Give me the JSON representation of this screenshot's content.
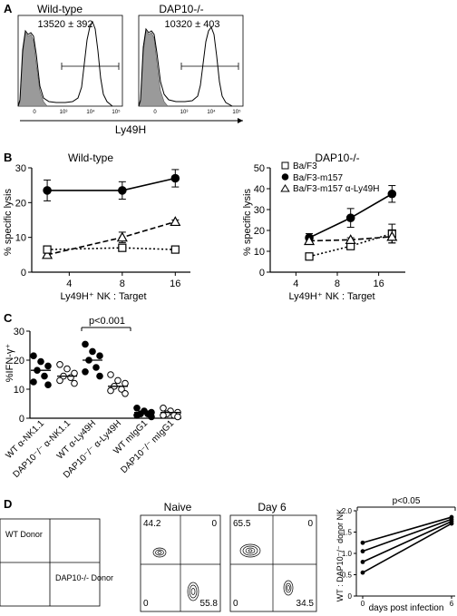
{
  "panel_labels": {
    "A": "A",
    "B": "B",
    "C": "C",
    "D": "D"
  },
  "panel_a": {
    "histograms": [
      {
        "title": "Wild-type",
        "mfi_text": "13520 ± 392"
      },
      {
        "title": "DAP10-/-",
        "mfi_text": "10320 ± 403"
      }
    ],
    "x_ticks": [
      "0",
      "10³",
      "10⁴",
      "10⁵"
    ],
    "axis_label": "Ly49H"
  },
  "panel_b": {
    "x_label": "Ly49H⁺ NK : Target",
    "y_label": "% specific lysis",
    "legend": [
      "Ba/F3",
      "Ba/F3-m157",
      "Ba/F3-m157 α-Ly49H"
    ],
    "x_ticks": [
      4,
      8,
      16
    ],
    "left": {
      "title": "Wild-type"
    },
    "right": {
      "title": "DAP10-/-"
    }
  },
  "panel_c": {
    "y_label": "%IFN-γ⁺",
    "y_ticks": [
      0,
      10,
      20,
      30
    ],
    "p_value": "p<0.001",
    "categories": [
      "WT α-NK1.1",
      "DAP10⁻/⁻ α-NK1.1",
      "WT α-Ly49H",
      "DAP10⁻/⁻ α-Ly49H",
      "WT mIgG1",
      "DAP10⁻/⁻ mIgG1"
    ]
  },
  "panel_d": {
    "schematic": {
      "top_left": "WT Donor",
      "bottom_right": "DAP10-/- Donor"
    },
    "plots": [
      {
        "title": "Naive",
        "q_ul": "44.2",
        "q_ur": "0",
        "q_ll": "0",
        "q_lr": "55.8"
      },
      {
        "title": "Day 6",
        "q_ul": "65.5",
        "q_ur": "0",
        "q_ll": "0",
        "q_lr": "34.5"
      }
    ],
    "ratio_plot": {
      "y_label": "WT : DAP10⁻/⁻ donor NK",
      "x_label": "days post infection",
      "p_value": "p<0.05",
      "y_ticks": [
        "0",
        "0.5",
        "1.0",
        "1.5",
        "2.0"
      ],
      "x_ticks": [
        "0",
        "6"
      ]
    }
  },
  "chart_data": [
    {
      "type": "line",
      "title": "Wild-type",
      "xlabel": "Ly49H⁺ NK : Target",
      "ylabel": "% specific lysis",
      "x_scale": "log2",
      "ylim": [
        0,
        30
      ],
      "series": [
        {
          "name": "Ba/F3-m157",
          "x": [
            3,
            8,
            16
          ],
          "y": [
            23.5,
            23.5,
            27
          ],
          "err": [
            3,
            2.5,
            2.5
          ],
          "marker": "filled-circle",
          "line": "solid"
        },
        {
          "name": "Ba/F3-m157 α-Ly49H",
          "x": [
            3,
            8,
            16
          ],
          "y": [
            5,
            10,
            14.5
          ],
          "err": [
            0.5,
            1.5,
            0.5
          ],
          "marker": "open-triangle",
          "line": "dashed"
        },
        {
          "name": "Ba/F3",
          "x": [
            3,
            8,
            16
          ],
          "y": [
            6.5,
            7,
            6.5
          ],
          "err": [
            0.5,
            1,
            0.5
          ],
          "marker": "open-square",
          "line": "dotted"
        }
      ]
    },
    {
      "type": "line",
      "title": "DAP10-/-",
      "xlabel": "Ly49H⁺ NK : Target",
      "ylabel": "% specific lysis",
      "x_scale": "log2",
      "ylim": [
        0,
        50
      ],
      "legend_position": "top-left",
      "series": [
        {
          "name": "Ba/F3",
          "x": [
            5,
            10,
            20
          ],
          "y": [
            7.5,
            12.5,
            18.5
          ],
          "err": [
            1,
            1.5,
            4.5
          ],
          "marker": "open-square",
          "line": "dotted"
        },
        {
          "name": "Ba/F3-m157",
          "x": [
            5,
            10,
            20
          ],
          "y": [
            16.5,
            26,
            37.5
          ],
          "err": [
            2,
            4.5,
            4
          ],
          "marker": "filled-circle",
          "line": "solid"
        },
        {
          "name": "Ba/F3-m157 α-Ly49H",
          "x": [
            5,
            10,
            20
          ],
          "y": [
            15,
            15.5,
            17
          ],
          "err": [
            1,
            1,
            3
          ],
          "marker": "open-triangle",
          "line": "dashed"
        }
      ]
    },
    {
      "type": "scatter",
      "ylabel": "%IFN-γ⁺",
      "ylim": [
        0,
        30
      ],
      "categories": [
        "WT α-NK1.1",
        "DAP10⁻/⁻ α-NK1.1",
        "WT α-Ly49H",
        "DAP10⁻/⁻ α-Ly49H",
        "WT mIgG1",
        "DAP10⁻/⁻ mIgG1"
      ],
      "points": [
        [
          21.5,
          19.5,
          18,
          16.5,
          14.5,
          12.5,
          11.5
        ],
        [
          18.5,
          17,
          15.5,
          14.5,
          14,
          13,
          12
        ],
        [
          25.5,
          23,
          21.5,
          20,
          17.5,
          16,
          14.5
        ],
        [
          15,
          13,
          12,
          11,
          10,
          9.5,
          8.5
        ],
        [
          3.5,
          2.5,
          2,
          1.5,
          1.5,
          1,
          0.5
        ],
        [
          3.5,
          2.5,
          2,
          1.5,
          1,
          1,
          0.5
        ]
      ],
      "means": [
        16.5,
        14.5,
        20,
        11,
        2,
        2
      ],
      "marker_fill": [
        "filled",
        "open",
        "filled",
        "open",
        "filled",
        "open"
      ]
    },
    {
      "type": "line",
      "ylabel": "WT : DAP10⁻/⁻ donor NK",
      "xlabel": "days post infection",
      "ylim": [
        0,
        2.0
      ],
      "x": [
        0,
        6
      ],
      "series": [
        {
          "y": [
            1.25,
            1.85
          ]
        },
        {
          "y": [
            1.05,
            1.8
          ]
        },
        {
          "y": [
            0.8,
            1.75
          ]
        },
        {
          "y": [
            0.55,
            1.7
          ]
        }
      ]
    }
  ]
}
